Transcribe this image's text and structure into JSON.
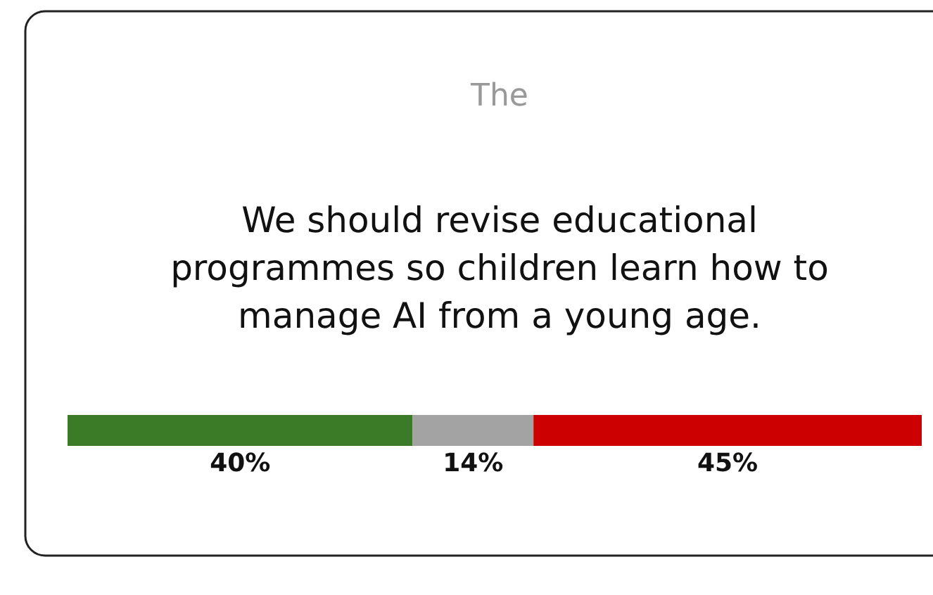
{
  "chart_data": {
    "type": "bar",
    "orientation": "horizontal",
    "stacked": true,
    "subtitle": "The",
    "title": "We should revise educational programmes so children learn how to manage AI from a young age.",
    "categories": [
      null
    ],
    "series": [
      {
        "color": "#3b7a26",
        "values": [
          40
        ],
        "value_labels": [
          "40%"
        ]
      },
      {
        "color": "#a3a3a3",
        "values": [
          14
        ],
        "value_labels": [
          "14%"
        ]
      },
      {
        "color": "#cc0000",
        "values": [
          45
        ],
        "value_labels": [
          "45%"
        ]
      }
    ]
  }
}
